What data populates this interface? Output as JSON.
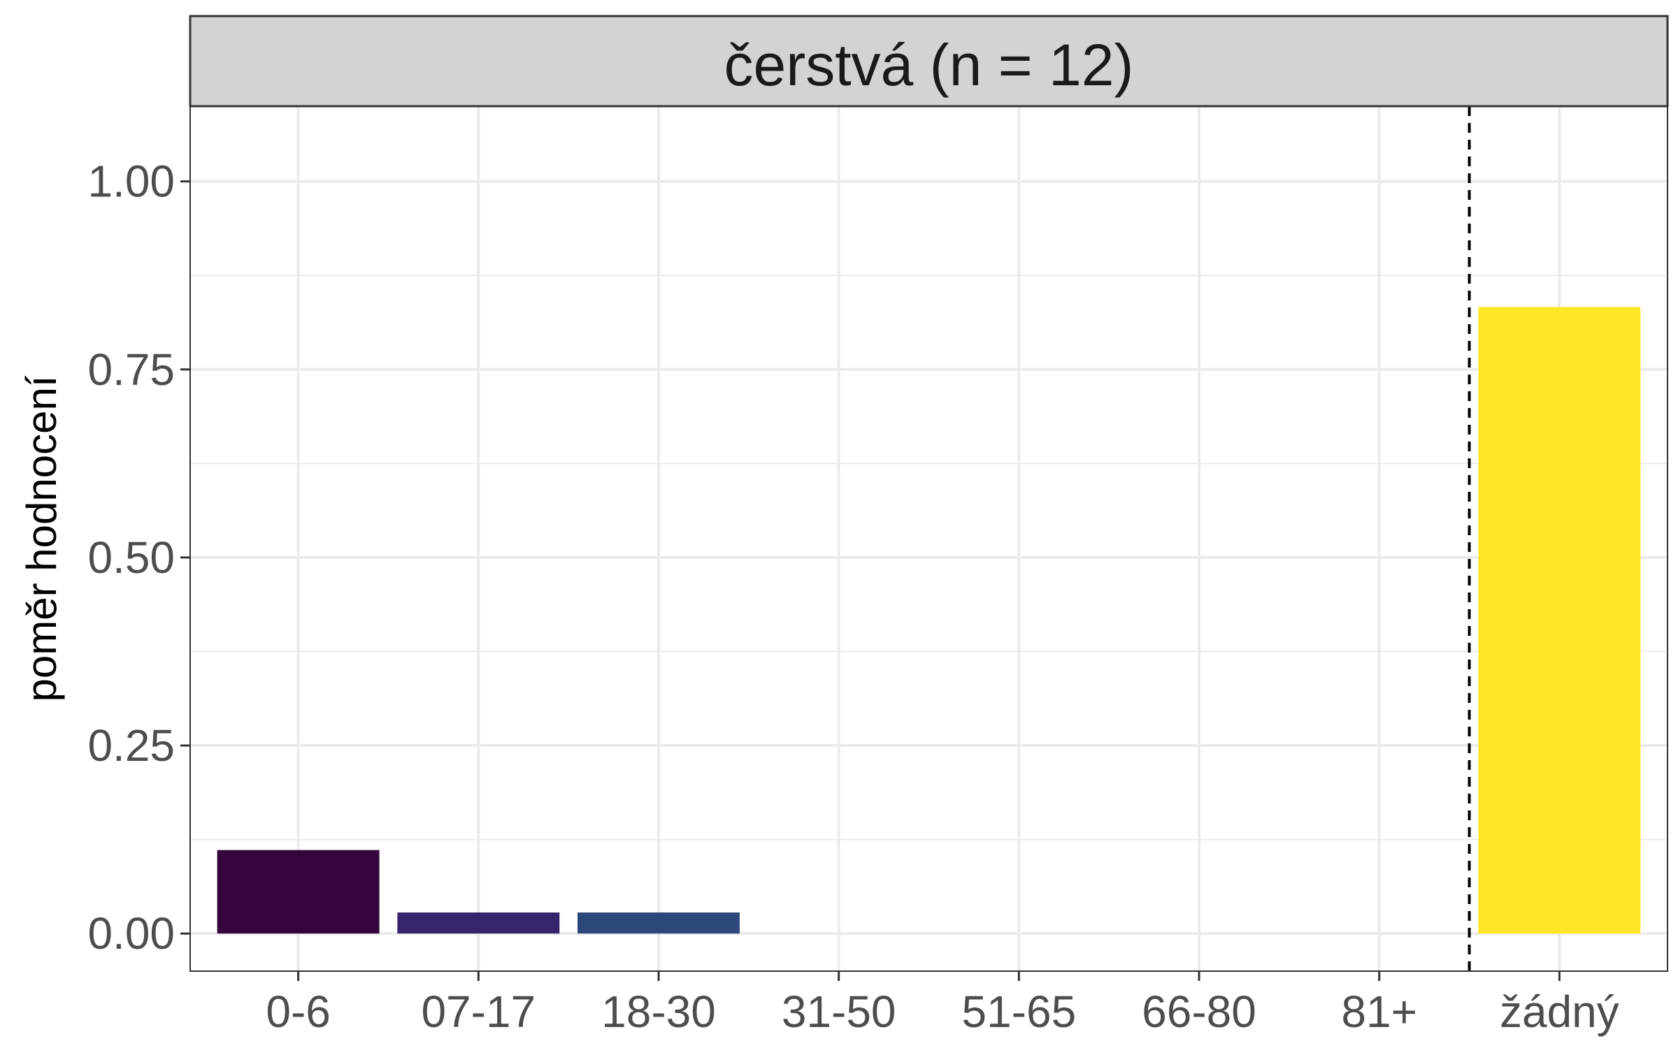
{
  "chart_data": {
    "type": "bar",
    "facet_title": "čerstvá (n = 12)",
    "xlabel": "",
    "ylabel": "poměr hodnocení",
    "categories": [
      "0-6",
      "07-17",
      "18-30",
      "31-50",
      "51-65",
      "66-80",
      "81+",
      "žádný"
    ],
    "values": [
      0.111,
      0.028,
      0.028,
      0,
      0,
      0,
      0,
      0.833
    ],
    "bar_colors": [
      "#35043d",
      "#36256b",
      "#2b4878",
      "#21908c",
      "#27ad81",
      "#5cc863",
      "#aadc32",
      "#fde725"
    ],
    "ylim": [
      -0.05,
      1.1
    ],
    "yticks": [
      0,
      0.25,
      0.5,
      0.75,
      1.0
    ],
    "ytick_labels": [
      "0.00",
      "0.25",
      "0.50",
      "0.75",
      "1.00"
    ],
    "reference_line": {
      "between": [
        "81+",
        "žádný"
      ],
      "style": "dashed",
      "color": "#000000"
    },
    "grid": true,
    "legend": "none",
    "theme_colors": {
      "panel_border": "#333333",
      "strip_fill": "#d3d3d3",
      "grid": "#ebebeb"
    }
  }
}
